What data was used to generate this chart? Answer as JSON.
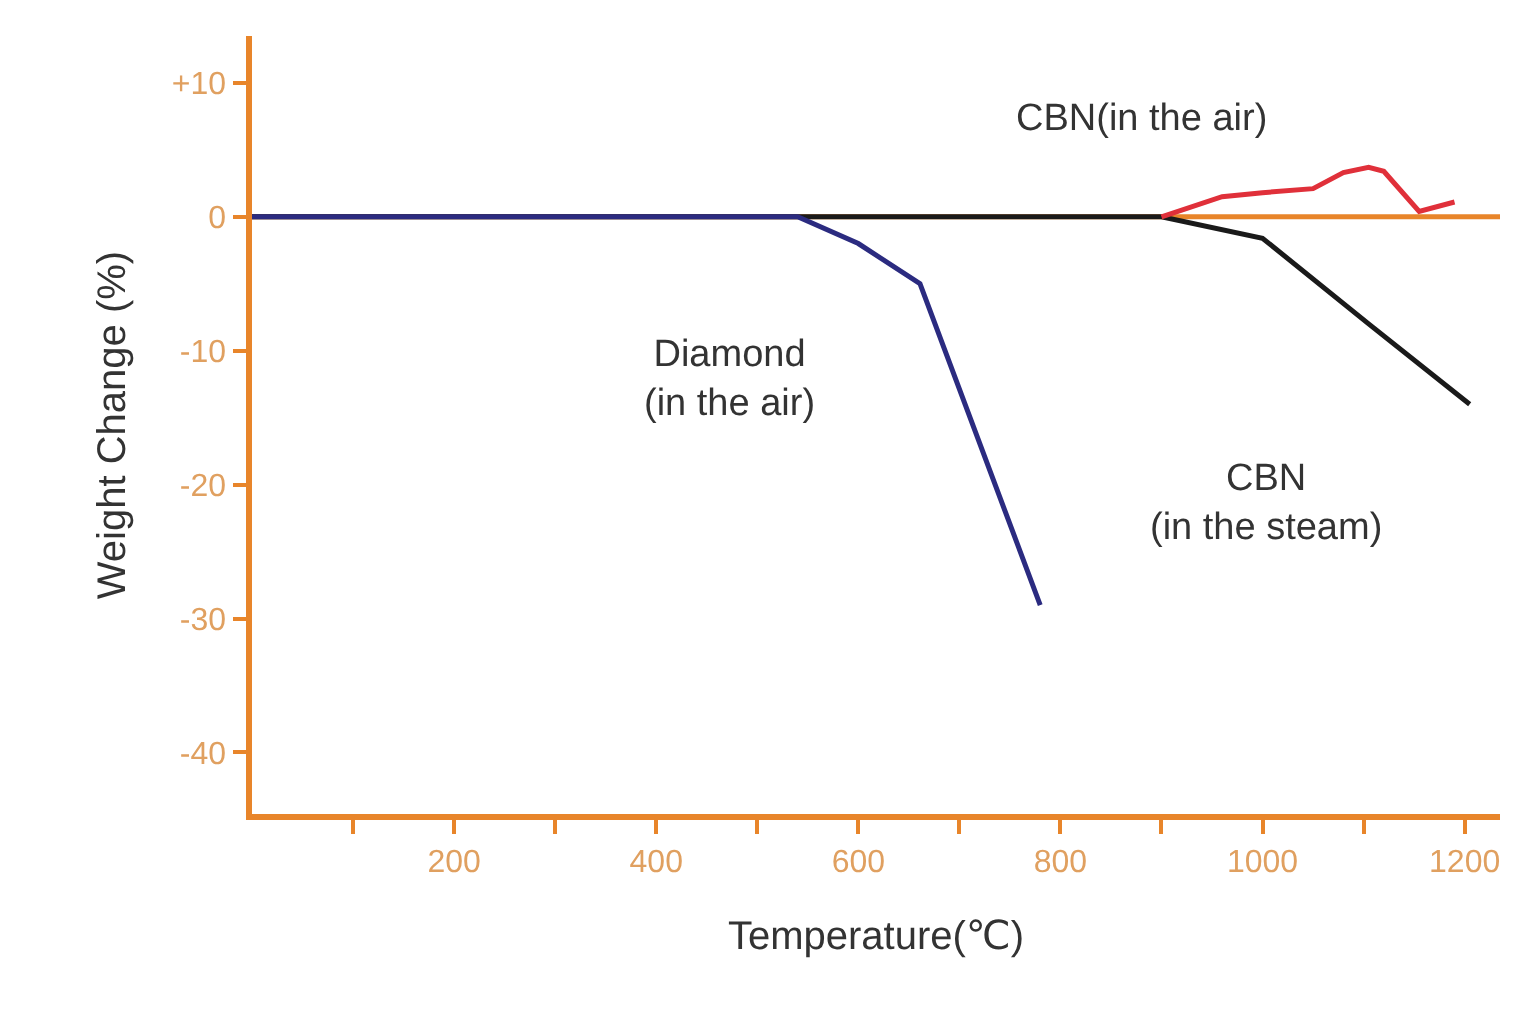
{
  "chart_data": {
    "type": "line",
    "xlabel": "Temperature(℃)",
    "ylabel": "Weight Change (%)",
    "xlim": [
      0,
      1235
    ],
    "ylim": [
      -44.6,
      13.5
    ],
    "xticks": [
      {
        "value": 100,
        "label": null
      },
      200,
      {
        "value": 300,
        "label": null
      },
      400,
      {
        "value": 500,
        "label": null
      },
      600,
      {
        "value": 700,
        "label": null
      },
      800,
      {
        "value": 900,
        "label": null
      },
      1000,
      {
        "value": 1100,
        "label": null
      },
      1200
    ],
    "yticks": [
      {
        "value": 10,
        "label": "+10"
      },
      0,
      -10,
      -20,
      -30,
      -40
    ],
    "grid": false,
    "legend": false,
    "ref_lines": [
      {
        "axis": "y",
        "value": 0,
        "color": "#e8852a"
      }
    ],
    "series": [
      {
        "name": "CBN\n(in the steam)",
        "color": "#1a1a1a",
        "x": [
          0,
          900,
          1000,
          1105,
          1205
        ],
        "values": [
          0,
          0,
          -1.6,
          -8,
          -14
        ]
      },
      {
        "name": "CBN(in the air)",
        "color": "#e0303a",
        "x": [
          900,
          960,
          1000,
          1050,
          1080,
          1105,
          1120,
          1155,
          1190
        ],
        "values": [
          0,
          1.5,
          1.8,
          2.1,
          3.3,
          3.7,
          3.4,
          0.4,
          1.1
        ]
      },
      {
        "name": "Diamond\n(in the air)",
        "color": "#2b2b80",
        "x": [
          0,
          540,
          600,
          661,
          780
        ],
        "values": [
          0,
          0,
          -2,
          -5,
          -29
        ]
      }
    ]
  }
}
